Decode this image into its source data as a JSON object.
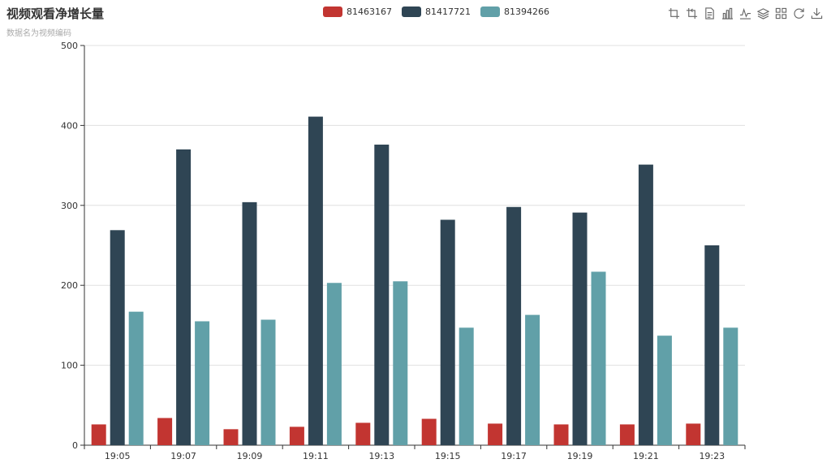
{
  "title": "视频观看净增长量",
  "subtitle": "数据名为视频编码",
  "legend": {
    "items": [
      {
        "name": "81463167",
        "color": "#c23531"
      },
      {
        "name": "81417721",
        "color": "#2f4554"
      },
      {
        "name": "81394266",
        "color": "#61a0a8"
      }
    ],
    "placement": "top-center"
  },
  "toolbox": {
    "icons": [
      "zoom-icon",
      "zoom-reset-icon",
      "data-view-icon",
      "bar-chart-icon",
      "line-chart-icon",
      "stack-icon",
      "tiled-icon",
      "restore-icon",
      "save-image-icon"
    ]
  },
  "chart_data": {
    "type": "bar",
    "categories": [
      "19:05",
      "19:07",
      "19:09",
      "19:11",
      "19:13",
      "19:15",
      "19:17",
      "19:19",
      "19:21",
      "19:23"
    ],
    "series": [
      {
        "name": "81463167",
        "color": "#c23531",
        "values": [
          26,
          34,
          20,
          23,
          28,
          33,
          27,
          26,
          26,
          27
        ]
      },
      {
        "name": "81417721",
        "color": "#2f4554",
        "values": [
          269,
          370,
          304,
          411,
          376,
          282,
          298,
          291,
          351,
          250
        ]
      },
      {
        "name": "81394266",
        "color": "#61a0a8",
        "values": [
          167,
          155,
          157,
          203,
          205,
          147,
          163,
          217,
          137,
          147
        ]
      }
    ],
    "ylim": [
      0,
      500
    ],
    "yticks": [
      0,
      100,
      200,
      300,
      400,
      500
    ],
    "grid": true
  }
}
